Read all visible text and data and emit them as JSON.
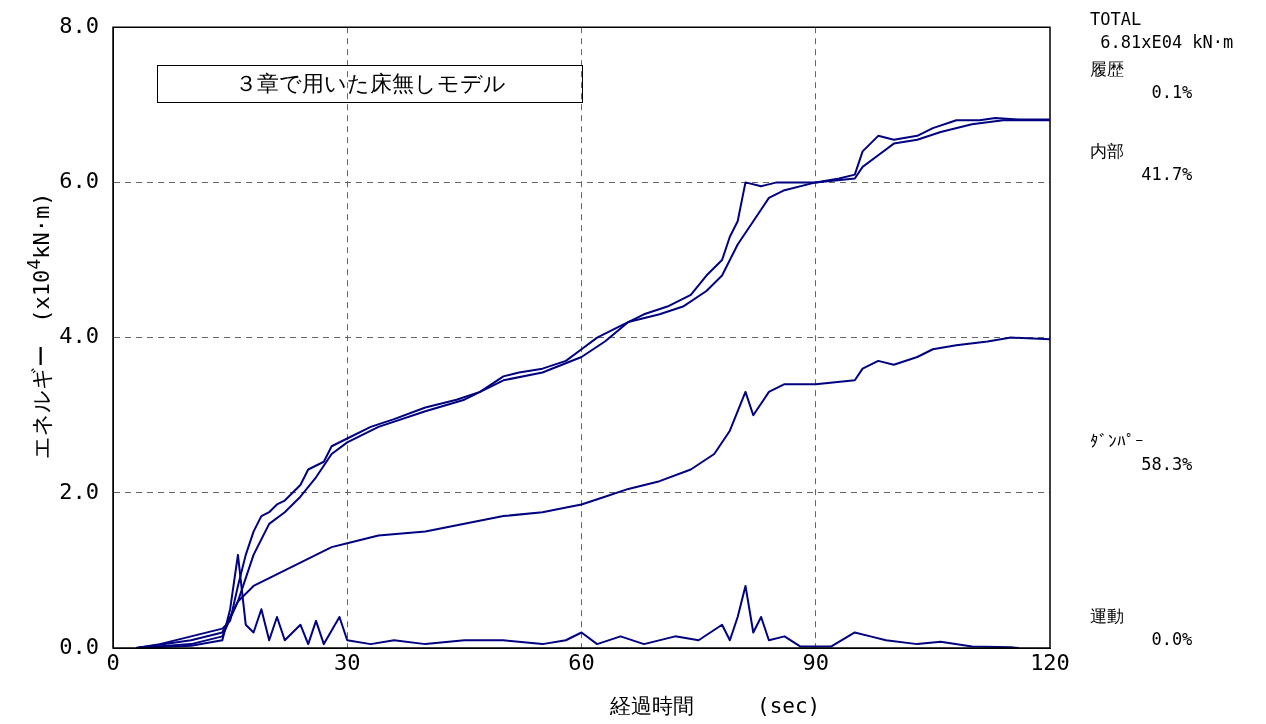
{
  "chart_data": {
    "type": "line",
    "xlabel": "経過時間　　　(sec)",
    "ylabel": "エネルギー　(x10$^{4}$kN·m)",
    "annotations": [
      "３章で用いた床無しモデル",
      "TOTAL\n 6.81xE04 kN·m",
      "履歴\n      0.1%",
      "内部\n     41.7%",
      "ﾀﾞﾝﾊﾟｰ\n     58.3%",
      "運動\n      0.0%"
    ],
    "xlim": [
      0,
      120
    ],
    "xticks": [
      0,
      30,
      60,
      90,
      120
    ],
    "ylim": [
      0,
      8
    ],
    "yticks": [
      {
        "value": 0,
        "label": "0.0"
      },
      {
        "value": 2,
        "label": "2.0"
      },
      {
        "value": 4,
        "label": "4.0"
      },
      {
        "value": 6,
        "label": "6.0"
      },
      {
        "value": 8,
        "label": "8.0"
      }
    ],
    "grid": true,
    "marker": "none",
    "line_style": "solid",
    "series": [
      {
        "color": "#000080",
        "x": [
          3,
          6,
          10,
          14,
          15,
          16,
          17,
          18,
          19,
          20,
          21,
          22,
          24,
          25,
          27,
          28,
          30,
          33,
          36,
          40,
          44,
          47,
          50,
          52,
          55,
          58,
          60,
          62,
          65,
          68,
          71,
          74,
          76,
          78,
          79,
          80,
          81,
          83,
          85,
          88,
          90,
          93,
          95,
          96,
          98,
          100,
          103,
          105,
          108,
          111,
          113,
          116,
          120
        ],
        "values": [
          0,
          0.05,
          0.15,
          0.25,
          0.35,
          0.8,
          1.2,
          1.5,
          1.7,
          1.75,
          1.85,
          1.9,
          2.1,
          2.3,
          2.4,
          2.6,
          2.7,
          2.85,
          2.95,
          3.1,
          3.2,
          3.3,
          3.5,
          3.55,
          3.6,
          3.7,
          3.85,
          4.0,
          4.15,
          4.3,
          4.4,
          4.55,
          4.8,
          5.0,
          5.3,
          5.5,
          6.0,
          5.95,
          6.0,
          6.0,
          6.0,
          6.05,
          6.1,
          6.4,
          6.6,
          6.55,
          6.6,
          6.7,
          6.8,
          6.8,
          6.83,
          6.81,
          6.81
        ]
      },
      {
        "color": "#000080",
        "x": [
          3,
          10,
          14,
          16,
          18,
          20,
          22,
          24,
          26,
          28,
          30,
          34,
          40,
          45,
          50,
          55,
          60,
          63,
          66,
          70,
          73,
          76,
          78,
          80,
          82,
          84,
          86,
          90,
          95,
          96,
          98,
          100,
          103,
          106,
          110,
          114,
          120
        ],
        "values": [
          0,
          0.1,
          0.2,
          0.6,
          1.2,
          1.6,
          1.75,
          1.95,
          2.2,
          2.5,
          2.65,
          2.85,
          3.05,
          3.2,
          3.45,
          3.55,
          3.75,
          3.95,
          4.2,
          4.3,
          4.4,
          4.6,
          4.8,
          5.2,
          5.5,
          5.8,
          5.9,
          6.0,
          6.05,
          6.2,
          6.35,
          6.5,
          6.55,
          6.65,
          6.75,
          6.8,
          6.8
        ]
      },
      {
        "color": "#000080",
        "x": [
          3,
          10,
          14,
          16,
          18,
          20,
          22,
          24,
          26,
          28,
          30,
          34,
          40,
          45,
          50,
          55,
          60,
          63,
          66,
          70,
          74,
          77,
          79,
          81,
          82,
          84,
          86,
          88,
          90,
          95,
          96,
          98,
          100,
          103,
          105,
          108,
          112,
          115,
          120
        ],
        "values": [
          0,
          0.05,
          0.15,
          0.6,
          0.8,
          0.9,
          1.0,
          1.1,
          1.2,
          1.3,
          1.35,
          1.45,
          1.5,
          1.6,
          1.7,
          1.75,
          1.85,
          1.95,
          2.05,
          2.15,
          2.3,
          2.5,
          2.8,
          3.3,
          3.0,
          3.3,
          3.4,
          3.4,
          3.4,
          3.45,
          3.6,
          3.7,
          3.65,
          3.75,
          3.85,
          3.9,
          3.95,
          4.0,
          3.98
        ]
      },
      {
        "color": "#000080",
        "x": [
          3,
          10,
          14,
          15,
          16,
          17,
          18,
          19,
          20,
          21,
          22,
          24,
          25,
          26,
          27,
          29,
          30,
          33,
          36,
          40,
          45,
          50,
          55,
          58,
          60,
          62,
          65,
          68,
          72,
          75,
          78,
          79,
          80,
          81,
          82,
          83,
          84,
          86,
          88,
          92,
          95,
          97,
          99,
          103,
          106,
          110,
          115,
          116
        ],
        "values": [
          0,
          0.03,
          0.1,
          0.5,
          1.2,
          0.3,
          0.2,
          0.5,
          0.1,
          0.4,
          0.1,
          0.3,
          0.05,
          0.35,
          0.05,
          0.4,
          0.1,
          0.05,
          0.1,
          0.05,
          0.1,
          0.1,
          0.05,
          0.1,
          0.2,
          0.05,
          0.15,
          0.05,
          0.15,
          0.1,
          0.3,
          0.1,
          0.4,
          0.8,
          0.2,
          0.4,
          0.1,
          0.15,
          0.02,
          0.02,
          0.2,
          0.15,
          0.1,
          0.05,
          0.08,
          0.02,
          0.01,
          0
        ]
      }
    ]
  }
}
